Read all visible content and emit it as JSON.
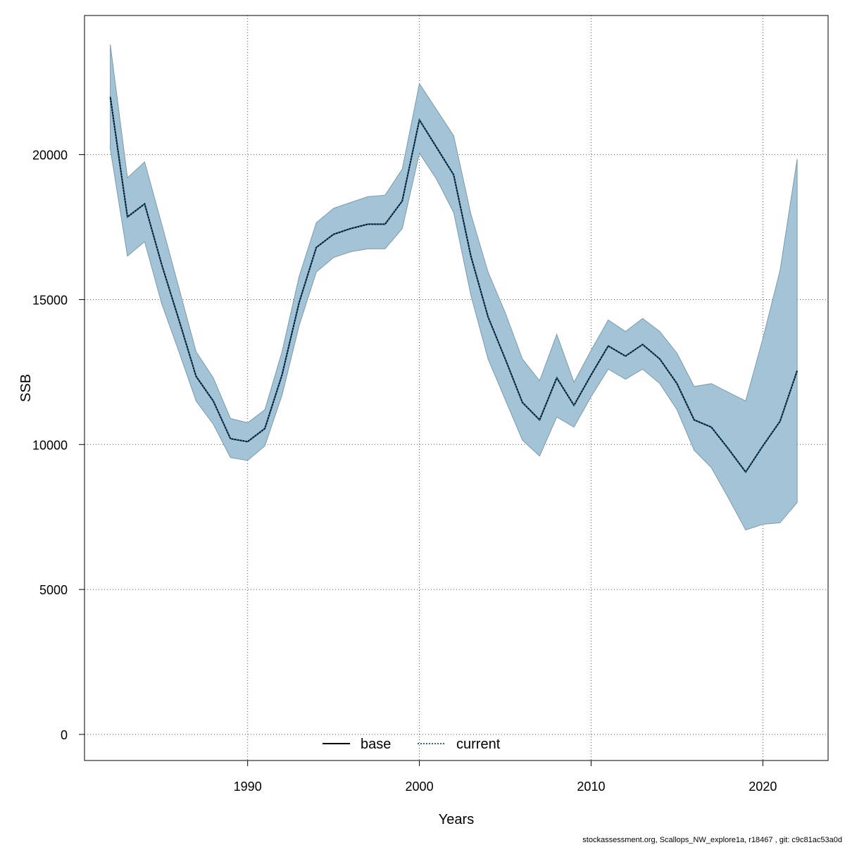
{
  "chart_data": {
    "type": "line",
    "xlabel": "Years",
    "ylabel": "SSB",
    "xlim": [
      1980.5,
      2023.8
    ],
    "ylim": [
      -900,
      24800
    ],
    "x_ticks": [
      1990,
      2000,
      2010,
      2020
    ],
    "y_ticks": [
      0,
      5000,
      10000,
      15000,
      20000
    ],
    "grid": true,
    "legend_position": "bottom",
    "x": [
      1982,
      1983,
      1984,
      1985,
      1986,
      1987,
      1988,
      1989,
      1990,
      1991,
      1992,
      1993,
      1994,
      1995,
      1996,
      1997,
      1998,
      1999,
      2000,
      2001,
      2002,
      2003,
      2004,
      2005,
      2006,
      2007,
      2008,
      2009,
      2010,
      2011,
      2012,
      2013,
      2014,
      2015,
      2016,
      2017,
      2018,
      2019,
      2020,
      2021,
      2022
    ],
    "band": {
      "upper": [
        23800,
        19200,
        19750,
        17600,
        15400,
        13200,
        12300,
        10900,
        10750,
        11200,
        13200,
        15800,
        17650,
        18150,
        18350,
        18550,
        18600,
        19500,
        22450,
        21550,
        20650,
        17950,
        15950,
        14550,
        12950,
        12200,
        13800,
        12150,
        13250,
        14300,
        13900,
        14350,
        13900,
        13150,
        12000,
        12100,
        11800,
        11500,
        13650,
        16000,
        19850
      ],
      "lower": [
        20200,
        16500,
        17000,
        14850,
        13200,
        11500,
        10700,
        9550,
        9450,
        9950,
        11700,
        14100,
        15950,
        16450,
        16650,
        16750,
        16750,
        17450,
        20050,
        19150,
        18000,
        15150,
        12950,
        11550,
        10150,
        9600,
        10950,
        10600,
        11650,
        12600,
        12250,
        12600,
        12100,
        11200,
        9800,
        9200,
        8150,
        7050,
        7250,
        7300,
        8000
      ]
    },
    "series": [
      {
        "name": "base",
        "color": "#000000",
        "dash": "solid",
        "values": [
          22000,
          17850,
          18300,
          16200,
          14300,
          12350,
          11500,
          10200,
          10100,
          10550,
          12400,
          14900,
          16800,
          17250,
          17450,
          17600,
          17600,
          18400,
          21200,
          20250,
          19300,
          16500,
          14400,
          12950,
          11450,
          10850,
          12300,
          11350,
          12400,
          13400,
          13050,
          13450,
          12950,
          12100,
          10850,
          10600,
          9850,
          9050,
          9950,
          10800,
          12550
        ]
      },
      {
        "name": "current",
        "color": "#1f6e9c",
        "dash": "dotted",
        "values": [
          22000,
          17850,
          18300,
          16200,
          14300,
          12350,
          11500,
          10200,
          10100,
          10550,
          12400,
          14900,
          16800,
          17250,
          17450,
          17600,
          17600,
          18400,
          21200,
          20250,
          19300,
          16500,
          14400,
          12950,
          11450,
          10850,
          12300,
          11350,
          12400,
          13400,
          13050,
          13450,
          12950,
          12100,
          10850,
          10600,
          9850,
          9050,
          9950,
          10800,
          12550
        ]
      }
    ],
    "colors": {
      "band_fill": "#a3c4d6",
      "band_edge": "#7d9aa8"
    }
  },
  "footer": "stockassessment.org, Scallops_NW_explore1a, r18467 , git: c9c81ac53a0d"
}
